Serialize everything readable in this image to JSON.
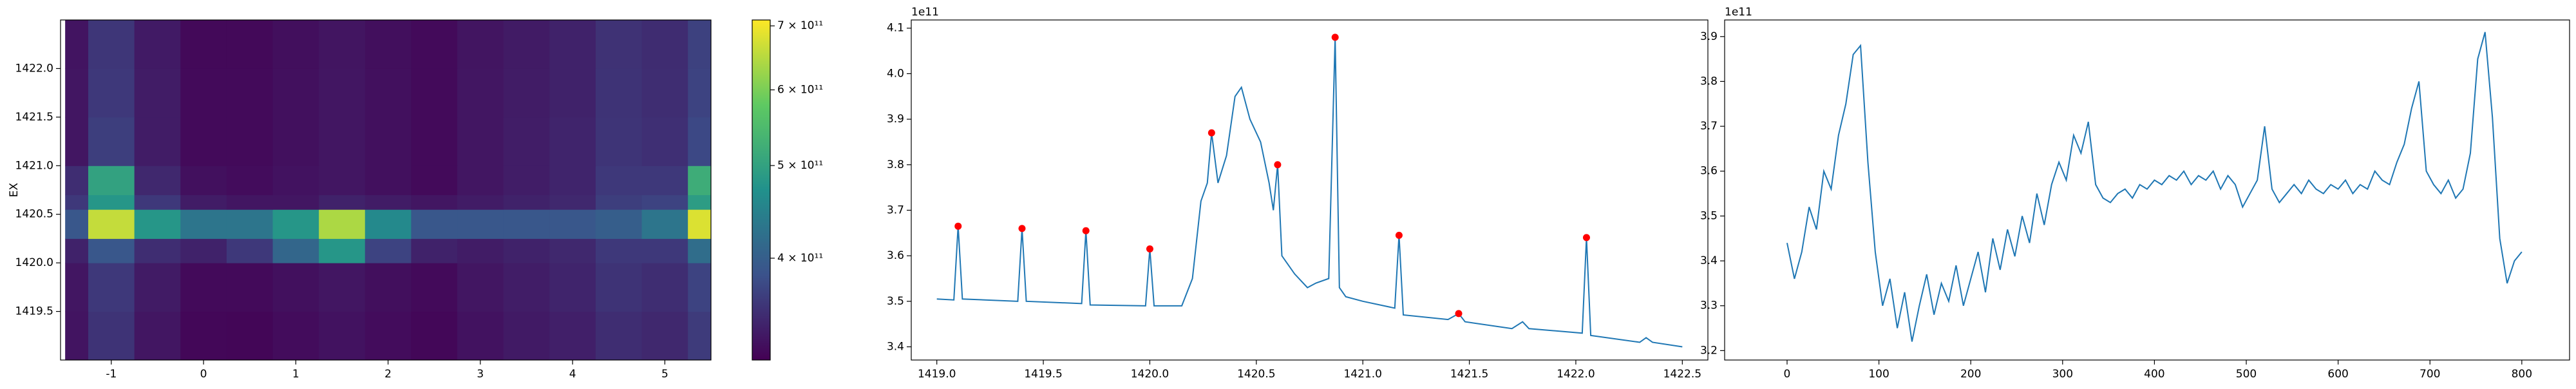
{
  "chart_data": [
    {
      "type": "heatmap",
      "ylabel": "EX",
      "colormap": "viridis",
      "xbins": [
        -1.5,
        -1.25,
        -0.75,
        -0.25,
        0.25,
        0.75,
        1.25,
        1.75,
        2.25,
        2.75,
        3.25,
        3.75,
        4.25,
        4.75,
        5.25,
        5.5
      ],
      "ybins": [
        1419.0,
        1419.5,
        1420.0,
        1420.25,
        1420.55,
        1420.7,
        1421.0,
        1421.5,
        1422.0,
        1422.5
      ],
      "z": [
        [
          328000000000.0,
          355000000000.0,
          330000000000.0,
          318000000000.0,
          317000000000.0,
          322000000000.0,
          327000000000.0,
          322000000000.0,
          318000000000.0,
          327000000000.0,
          333000000000.0,
          338000000000.0,
          350000000000.0,
          345000000000.0,
          362000000000.0
        ],
        [
          330000000000.0,
          360000000000.0,
          334000000000.0,
          320000000000.0,
          320000000000.0,
          325000000000.0,
          330000000000.0,
          324000000000.0,
          320000000000.0,
          330000000000.0,
          336000000000.0,
          342000000000.0,
          355000000000.0,
          350000000000.0,
          370000000000.0
        ],
        [
          340000000000.0,
          390000000000.0,
          350000000000.0,
          340000000000.0,
          360000000000.0,
          410000000000.0,
          480000000000.0,
          370000000000.0,
          340000000000.0,
          335000000000.0,
          340000000000.0,
          345000000000.0,
          360000000000.0,
          360000000000.0,
          420000000000.0
        ],
        [
          390000000000.0,
          660000000000.0,
          480000000000.0,
          430000000000.0,
          430000000000.0,
          480000000000.0,
          640000000000.0,
          460000000000.0,
          390000000000.0,
          390000000000.0,
          390000000000.0,
          390000000000.0,
          400000000000.0,
          430000000000.0,
          680000000000.0
        ],
        [
          360000000000.0,
          480000000000.0,
          360000000000.0,
          335000000000.0,
          330000000000.0,
          330000000000.0,
          340000000000.0,
          335000000000.0,
          330000000000.0,
          335000000000.0,
          340000000000.0,
          345000000000.0,
          365000000000.0,
          370000000000.0,
          490000000000.0
        ],
        [
          350000000000.0,
          500000000000.0,
          345000000000.0,
          325000000000.0,
          322000000000.0,
          327000000000.0,
          330000000000.0,
          325000000000.0,
          320000000000.0,
          330000000000.0,
          336000000000.0,
          342000000000.0,
          360000000000.0,
          360000000000.0,
          520000000000.0
        ],
        [
          330000000000.0,
          365000000000.0,
          335000000000.0,
          320000000000.0,
          320000000000.0,
          325000000000.0,
          330000000000.0,
          325000000000.0,
          320000000000.0,
          330000000000.0,
          336000000000.0,
          342000000000.0,
          356000000000.0,
          352000000000.0,
          375000000000.0
        ],
        [
          330000000000.0,
          360000000000.0,
          335000000000.0,
          320000000000.0,
          320000000000.0,
          325000000000.0,
          330000000000.0,
          325000000000.0,
          320000000000.0,
          330000000000.0,
          335000000000.0,
          340000000000.0,
          355000000000.0,
          350000000000.0,
          370000000000.0
        ],
        [
          328000000000.0,
          358000000000.0,
          333000000000.0,
          319000000000.0,
          319000000000.0,
          324000000000.0,
          329000000000.0,
          324000000000.0,
          320000000000.0,
          329000000000.0,
          334000000000.0,
          340000000000.0,
          354000000000.0,
          349000000000.0,
          368000000000.0
        ]
      ],
      "xlim": [
        -1.55,
        5.5
      ],
      "ylim": [
        1419.0,
        1422.5
      ],
      "xticks": [
        -1,
        0,
        1,
        2,
        3,
        4,
        5
      ],
      "yticks": [
        1419.5,
        {
          "value": 1420,
          "label": "1420.0"
        },
        1420.5,
        {
          "value": 1421,
          "label": "1421.0"
        },
        1421.5,
        {
          "value": 1422,
          "label": "1422.0"
        }
      ],
      "colorbar": {
        "scale": "log",
        "lim": [
          313000000000.0,
          710000000000.0
        ],
        "ticks": [
          {
            "value": 400000000000.0,
            "label": "4 × 10¹¹"
          },
          {
            "value": 500000000000.0,
            "label": "5 × 10¹¹"
          },
          {
            "value": 600000000000.0,
            "label": "6 × 10¹¹"
          },
          {
            "value": 700000000000.0,
            "label": "7 × 10¹¹"
          }
        ]
      }
    },
    {
      "type": "line",
      "y_offset_label": "1e11",
      "xlim": [
        1418.88,
        1422.62
      ],
      "ylim": [
        3.371,
        4.118
      ],
      "xticks": [
        {
          "value": 1419,
          "label": "1419.0"
        },
        1419.5,
        {
          "value": 1420,
          "label": "1420.0"
        },
        1420.5,
        {
          "value": 1421,
          "label": "1421.0"
        },
        1421.5,
        {
          "value": 1422,
          "label": "1422.0"
        },
        1422.5
      ],
      "yticks": [
        3.4,
        3.5,
        3.6,
        3.7,
        3.8,
        3.9,
        {
          "value": 4,
          "label": "4.0"
        },
        4.1
      ],
      "series": [
        {
          "color": "#1f77b4",
          "style": "line",
          "x": [
            1419.0,
            1419.08,
            1419.1,
            1419.12,
            1419.38,
            1419.4,
            1419.42,
            1419.68,
            1419.7,
            1419.72,
            1419.98,
            1420.0,
            1420.02,
            1420.15,
            1420.2,
            1420.24,
            1420.27,
            1420.29,
            1420.32,
            1420.36,
            1420.4,
            1420.43,
            1420.47,
            1420.52,
            1420.56,
            1420.58,
            1420.6,
            1420.62,
            1420.68,
            1420.74,
            1420.78,
            1420.84,
            1420.87,
            1420.89,
            1420.92,
            1421.0,
            1421.1,
            1421.15,
            1421.17,
            1421.19,
            1421.4,
            1421.45,
            1421.48,
            1421.7,
            1421.75,
            1421.78,
            1422.03,
            1422.05,
            1422.07,
            1422.3,
            1422.33,
            1422.36,
            1422.5
          ],
          "values": [
            3.505,
            3.503,
            3.665,
            3.505,
            3.5,
            3.66,
            3.5,
            3.495,
            3.655,
            3.492,
            3.49,
            3.615,
            3.49,
            3.49,
            3.55,
            3.72,
            3.76,
            3.87,
            3.76,
            3.82,
            3.95,
            3.97,
            3.9,
            3.85,
            3.76,
            3.7,
            3.8,
            3.6,
            3.56,
            3.53,
            3.54,
            3.55,
            4.08,
            3.53,
            3.51,
            3.5,
            3.49,
            3.485,
            3.645,
            3.47,
            3.46,
            3.473,
            3.455,
            3.44,
            3.455,
            3.44,
            3.43,
            3.64,
            3.425,
            3.41,
            3.42,
            3.41,
            3.4
          ]
        },
        {
          "color": "#ff0000",
          "style": "markers",
          "x": [
            1419.1,
            1419.4,
            1419.7,
            1420.0,
            1420.29,
            1420.6,
            1420.87,
            1421.17,
            1421.45,
            1422.05
          ],
          "values": [
            3.665,
            3.66,
            3.655,
            3.615,
            3.87,
            3.8,
            4.08,
            3.645,
            3.473,
            3.64
          ]
        }
      ]
    },
    {
      "type": "line",
      "y_offset_label": "1e11",
      "xlim": [
        -68,
        852
      ],
      "ylim": [
        3.179,
        3.937
      ],
      "xticks": [
        0,
        100,
        200,
        300,
        400,
        500,
        600,
        700,
        800
      ],
      "yticks": [
        3.2,
        3.3,
        3.4,
        3.5,
        3.6,
        3.7,
        3.8,
        3.9
      ],
      "series": [
        {
          "color": "#1f77b4",
          "style": "line",
          "x": [
            0,
            8,
            16,
            24,
            32,
            40,
            48,
            56,
            64,
            72,
            80,
            88,
            96,
            104,
            112,
            120,
            128,
            136,
            144,
            152,
            160,
            168,
            176,
            184,
            192,
            200,
            208,
            216,
            224,
            232,
            240,
            248,
            256,
            264,
            272,
            280,
            288,
            296,
            304,
            312,
            320,
            328,
            336,
            344,
            352,
            360,
            368,
            376,
            384,
            392,
            400,
            408,
            416,
            424,
            432,
            440,
            448,
            456,
            464,
            472,
            480,
            488,
            496,
            504,
            512,
            520,
            528,
            536,
            544,
            552,
            560,
            568,
            576,
            584,
            592,
            600,
            608,
            616,
            624,
            632,
            640,
            648,
            656,
            664,
            672,
            680,
            688,
            696,
            704,
            712,
            720,
            728,
            736,
            744,
            752,
            760,
            768,
            776,
            784,
            792,
            800
          ],
          "values": [
            3.44,
            3.36,
            3.42,
            3.52,
            3.47,
            3.6,
            3.56,
            3.68,
            3.75,
            3.86,
            3.88,
            3.62,
            3.42,
            3.3,
            3.36,
            3.25,
            3.33,
            3.22,
            3.3,
            3.37,
            3.28,
            3.35,
            3.31,
            3.39,
            3.3,
            3.36,
            3.42,
            3.33,
            3.45,
            3.38,
            3.47,
            3.41,
            3.5,
            3.44,
            3.55,
            3.48,
            3.57,
            3.62,
            3.58,
            3.68,
            3.64,
            3.71,
            3.57,
            3.54,
            3.53,
            3.55,
            3.56,
            3.54,
            3.57,
            3.56,
            3.58,
            3.57,
            3.59,
            3.58,
            3.6,
            3.57,
            3.59,
            3.58,
            3.6,
            3.56,
            3.59,
            3.57,
            3.52,
            3.55,
            3.58,
            3.7,
            3.56,
            3.53,
            3.55,
            3.57,
            3.55,
            3.58,
            3.56,
            3.55,
            3.57,
            3.56,
            3.58,
            3.55,
            3.57,
            3.56,
            3.6,
            3.58,
            3.57,
            3.62,
            3.66,
            3.74,
            3.8,
            3.6,
            3.57,
            3.55,
            3.58,
            3.54,
            3.56,
            3.64,
            3.85,
            3.91,
            3.72,
            3.45,
            3.35,
            3.4,
            3.42
          ]
        }
      ]
    }
  ]
}
